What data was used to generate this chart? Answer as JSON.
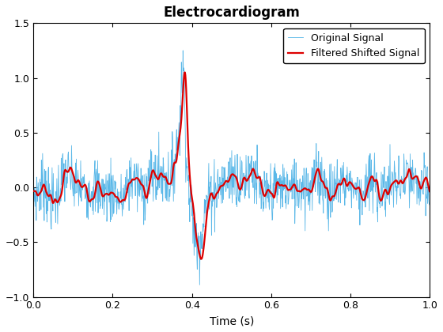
{
  "title": "Electrocardiogram",
  "xlabel": "Time (s)",
  "xlim": [
    0,
    1
  ],
  "ylim": [
    -1,
    1.5
  ],
  "xticks": [
    0,
    0.2,
    0.4,
    0.6,
    0.8,
    1.0
  ],
  "yticks": [
    -1.0,
    -0.5,
    0.0,
    0.5,
    1.0,
    1.5
  ],
  "original_color": "#5bb8e8",
  "filtered_color": "#dd0000",
  "original_label": "Original Signal",
  "filtered_label": "Filtered Shifted Signal",
  "original_linewidth": 0.6,
  "filtered_linewidth": 1.6,
  "title_fontsize": 12,
  "label_fontsize": 10,
  "legend_fontsize": 9,
  "n_samples": 1000,
  "noise_std": 0.22,
  "seed": 7
}
